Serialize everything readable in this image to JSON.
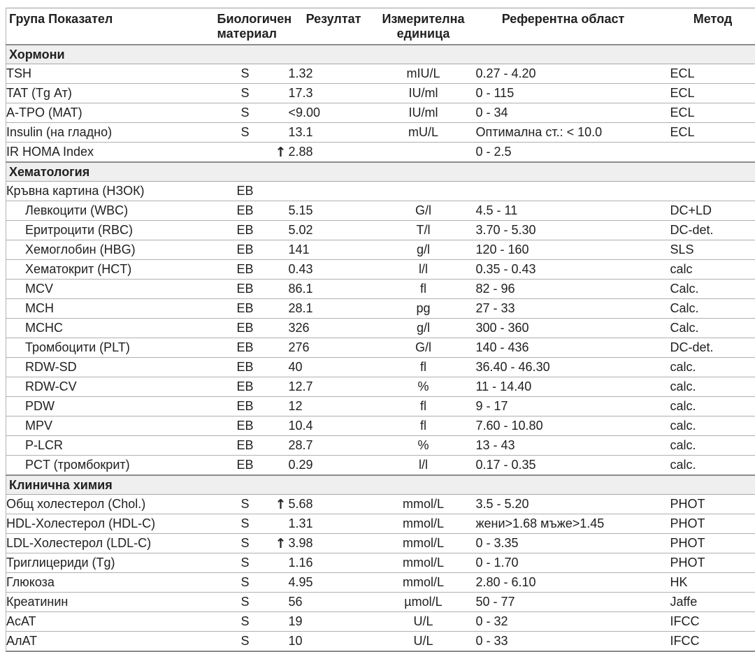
{
  "icons": {
    "arrow_up": "↑"
  },
  "table": {
    "headers": [
      "Група Показател",
      "Биологичен материал",
      "Резултат",
      "Измерителна единица",
      "Референтна област",
      "Метод"
    ],
    "sections": [
      {
        "title": "Хормони",
        "rows": [
          {
            "parameter": "TSH",
            "indent": false,
            "material": "S",
            "flag": "",
            "result": "1.32",
            "unit": "mIU/L",
            "reference": "0.27 - 4.20",
            "method": "ECL"
          },
          {
            "parameter": "TAT (Tg Ат)",
            "indent": false,
            "material": "S",
            "flag": "",
            "result": "17.3",
            "unit": "IU/ml",
            "reference": "0 - 115",
            "method": "ECL"
          },
          {
            "parameter": "A-TPO (MAT)",
            "indent": false,
            "material": "S",
            "flag": "",
            "result": "<9.00",
            "unit": "IU/ml",
            "reference": "0 - 34",
            "method": "ECL"
          },
          {
            "parameter": "Insulin (на гладно)",
            "indent": false,
            "material": "S",
            "flag": "",
            "result": "13.1",
            "unit": "mU/L",
            "reference": "Оптимална ст.: < 10.0",
            "method": "ECL"
          },
          {
            "parameter": "IR HOMA Index",
            "indent": false,
            "material": "",
            "flag": "high",
            "result": "2.88",
            "unit": "",
            "reference": "0 - 2.5",
            "method": ""
          }
        ]
      },
      {
        "title": "Хематология",
        "rows": [
          {
            "parameter": "Кръвна картина (НЗОК)",
            "indent": false,
            "material": "EB",
            "flag": "",
            "result": "",
            "unit": "",
            "reference": "",
            "method": ""
          },
          {
            "parameter": "Левкоцити (WBC)",
            "indent": true,
            "material": "EB",
            "flag": "",
            "result": "5.15",
            "unit": "G/l",
            "reference": "4.5 - 11",
            "method": "DC+LD"
          },
          {
            "parameter": "Еритроцити (RBC)",
            "indent": true,
            "material": "EB",
            "flag": "",
            "result": "5.02",
            "unit": "T/l",
            "reference": "3.70 - 5.30",
            "method": "DC-det."
          },
          {
            "parameter": "Хемоглобин (HBG)",
            "indent": true,
            "material": "EB",
            "flag": "",
            "result": "141",
            "unit": "g/l",
            "reference": "120 - 160",
            "method": "SLS"
          },
          {
            "parameter": "Хематокрит (HCT)",
            "indent": true,
            "material": "EB",
            "flag": "",
            "result": "0.43",
            "unit": "l/l",
            "reference": "0.35 - 0.43",
            "method": "calc"
          },
          {
            "parameter": "MCV",
            "indent": true,
            "material": "EB",
            "flag": "",
            "result": "86.1",
            "unit": "fl",
            "reference": "82 - 96",
            "method": "Calc."
          },
          {
            "parameter": "MCH",
            "indent": true,
            "material": "EB",
            "flag": "",
            "result": "28.1",
            "unit": "pg",
            "reference": "27 - 33",
            "method": "Calc."
          },
          {
            "parameter": "MCHC",
            "indent": true,
            "material": "EB",
            "flag": "",
            "result": "326",
            "unit": "g/l",
            "reference": "300 - 360",
            "method": "Calc."
          },
          {
            "parameter": "Тромбоцити (PLT)",
            "indent": true,
            "material": "EB",
            "flag": "",
            "result": "276",
            "unit": "G/l",
            "reference": "140 - 436",
            "method": "DC-det."
          },
          {
            "parameter": "RDW-SD",
            "indent": true,
            "material": "EB",
            "flag": "",
            "result": "40",
            "unit": "fl",
            "reference": "36.40 - 46.30",
            "method": "calc."
          },
          {
            "parameter": "RDW-CV",
            "indent": true,
            "material": "EB",
            "flag": "",
            "result": "12.7",
            "unit": "%",
            "reference": "11 - 14.40",
            "method": "calc."
          },
          {
            "parameter": "PDW",
            "indent": true,
            "material": "EB",
            "flag": "",
            "result": "12",
            "unit": "fl",
            "reference": "9 - 17",
            "method": "calc."
          },
          {
            "parameter": "MPV",
            "indent": true,
            "material": "EB",
            "flag": "",
            "result": "10.4",
            "unit": "fl",
            "reference": "7.60 - 10.80",
            "method": "calc."
          },
          {
            "parameter": "P-LCR",
            "indent": true,
            "material": "EB",
            "flag": "",
            "result": "28.7",
            "unit": "%",
            "reference": "13 - 43",
            "method": "calc."
          },
          {
            "parameter": "PCT (тромбокрит)",
            "indent": true,
            "material": "EB",
            "flag": "",
            "result": "0.29",
            "unit": "l/l",
            "reference": "0.17 - 0.35",
            "method": "calc."
          }
        ]
      },
      {
        "title": "Клинична химия",
        "rows": [
          {
            "parameter": "Общ холестерол (Chol.)",
            "indent": false,
            "material": "S",
            "flag": "high",
            "result": "5.68",
            "unit": "mmol/L",
            "reference": "3.5 - 5.20",
            "method": "PHOT"
          },
          {
            "parameter": "HDL-Холестерол (HDL-C)",
            "indent": false,
            "material": "S",
            "flag": "",
            "result": "1.31",
            "unit": "mmol/L",
            "reference": "жени>1.68 мъже>1.45",
            "method": "PHOT"
          },
          {
            "parameter": "LDL-Холестерол (LDL-C)",
            "indent": false,
            "material": "S",
            "flag": "high",
            "result": "3.98",
            "unit": "mmol/L",
            "reference": "0 - 3.35",
            "method": "PHOT"
          },
          {
            "parameter": "Триглицериди (Tg)",
            "indent": false,
            "material": "S",
            "flag": "",
            "result": "1.16",
            "unit": "mmol/L",
            "reference": "0 - 1.70",
            "method": "PHOT"
          },
          {
            "parameter": "Глюкоза",
            "indent": false,
            "material": "S",
            "flag": "",
            "result": "4.95",
            "unit": "mmol/L",
            "reference": "2.80 - 6.10",
            "method": "HK"
          },
          {
            "parameter": "Креатинин",
            "indent": false,
            "material": "S",
            "flag": "",
            "result": "56",
            "unit": "µmol/L",
            "reference": "50 - 77",
            "method": "Jaffe"
          },
          {
            "parameter": "АсАТ",
            "indent": false,
            "material": "S",
            "flag": "",
            "result": "19",
            "unit": "U/L",
            "reference": "0 - 32",
            "method": "IFCC"
          },
          {
            "parameter": "АлАТ",
            "indent": false,
            "material": "S",
            "flag": "",
            "result": "10",
            "unit": "U/L",
            "reference": "0 - 33",
            "method": "IFCC"
          }
        ]
      }
    ]
  }
}
